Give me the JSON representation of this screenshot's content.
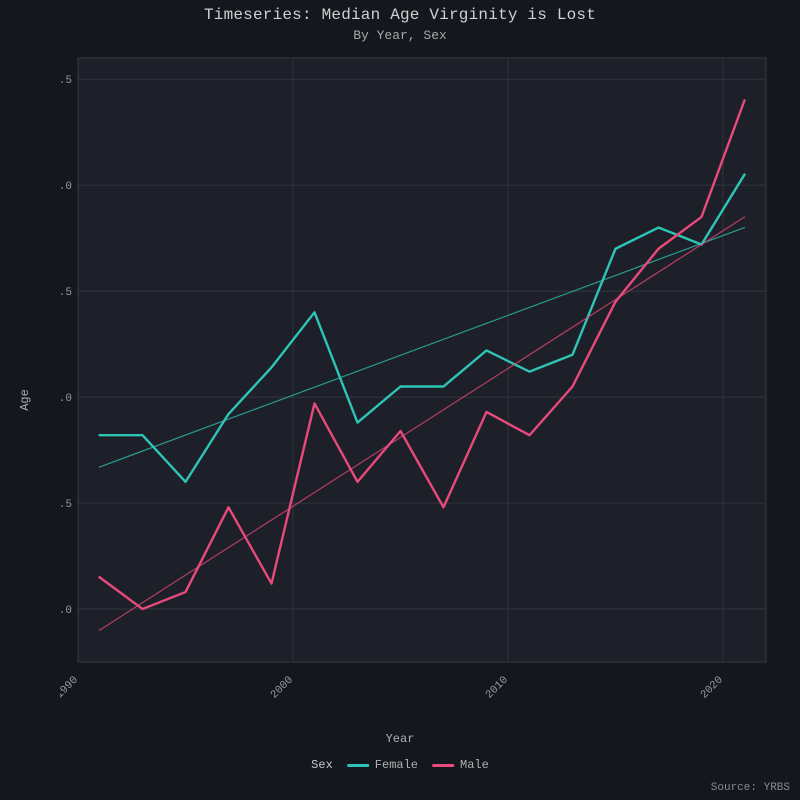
{
  "title": "Timeseries: Median Age Virginity is Lost",
  "subtitle": "By Year, Sex",
  "axis": {
    "xlabel": "Year",
    "ylabel": "Age",
    "xlim": [
      1990,
      2022
    ],
    "ylim": [
      14.75,
      17.6
    ],
    "xticks": [
      1990,
      2000,
      2010,
      2020
    ],
    "yticks": [
      15.0,
      15.5,
      16.0,
      16.5,
      17.0,
      17.5
    ],
    "xtick_rotate": true
  },
  "style": {
    "background": "#15171f",
    "panel_bg": "#1d2029",
    "grid_color": "#3a3c46",
    "text_color": "#c8c8c8",
    "line_width": 2.4,
    "trend_width": 1.2
  },
  "series": [
    {
      "name": "Female",
      "color": "#2ec4b6",
      "years": [
        1991,
        1993,
        1995,
        1997,
        1999,
        2001,
        2003,
        2005,
        2007,
        2009,
        2011,
        2013,
        2015,
        2017,
        2019,
        2021
      ],
      "values": [
        15.82,
        15.82,
        15.6,
        15.92,
        16.14,
        16.4,
        15.88,
        16.05,
        16.05,
        16.22,
        16.12,
        16.2,
        16.7,
        16.8,
        16.72,
        17.05
      ],
      "trend": {
        "x": [
          1991,
          2021
        ],
        "y": [
          15.67,
          16.8
        ]
      }
    },
    {
      "name": "Male",
      "color": "#e84a7a",
      "years": [
        1991,
        1993,
        1995,
        1997,
        1999,
        2001,
        2003,
        2005,
        2007,
        2009,
        2011,
        2013,
        2015,
        2017,
        2019,
        2021
      ],
      "values": [
        15.15,
        15.0,
        15.08,
        15.48,
        15.12,
        15.97,
        15.6,
        15.84,
        15.48,
        15.93,
        15.82,
        16.05,
        16.45,
        16.7,
        16.85,
        17.4
      ],
      "trend": {
        "x": [
          1991,
          2021
        ],
        "y": [
          14.9,
          16.85
        ]
      }
    }
  ],
  "legend_title": "Sex",
  "source": "Source: YRBS"
}
